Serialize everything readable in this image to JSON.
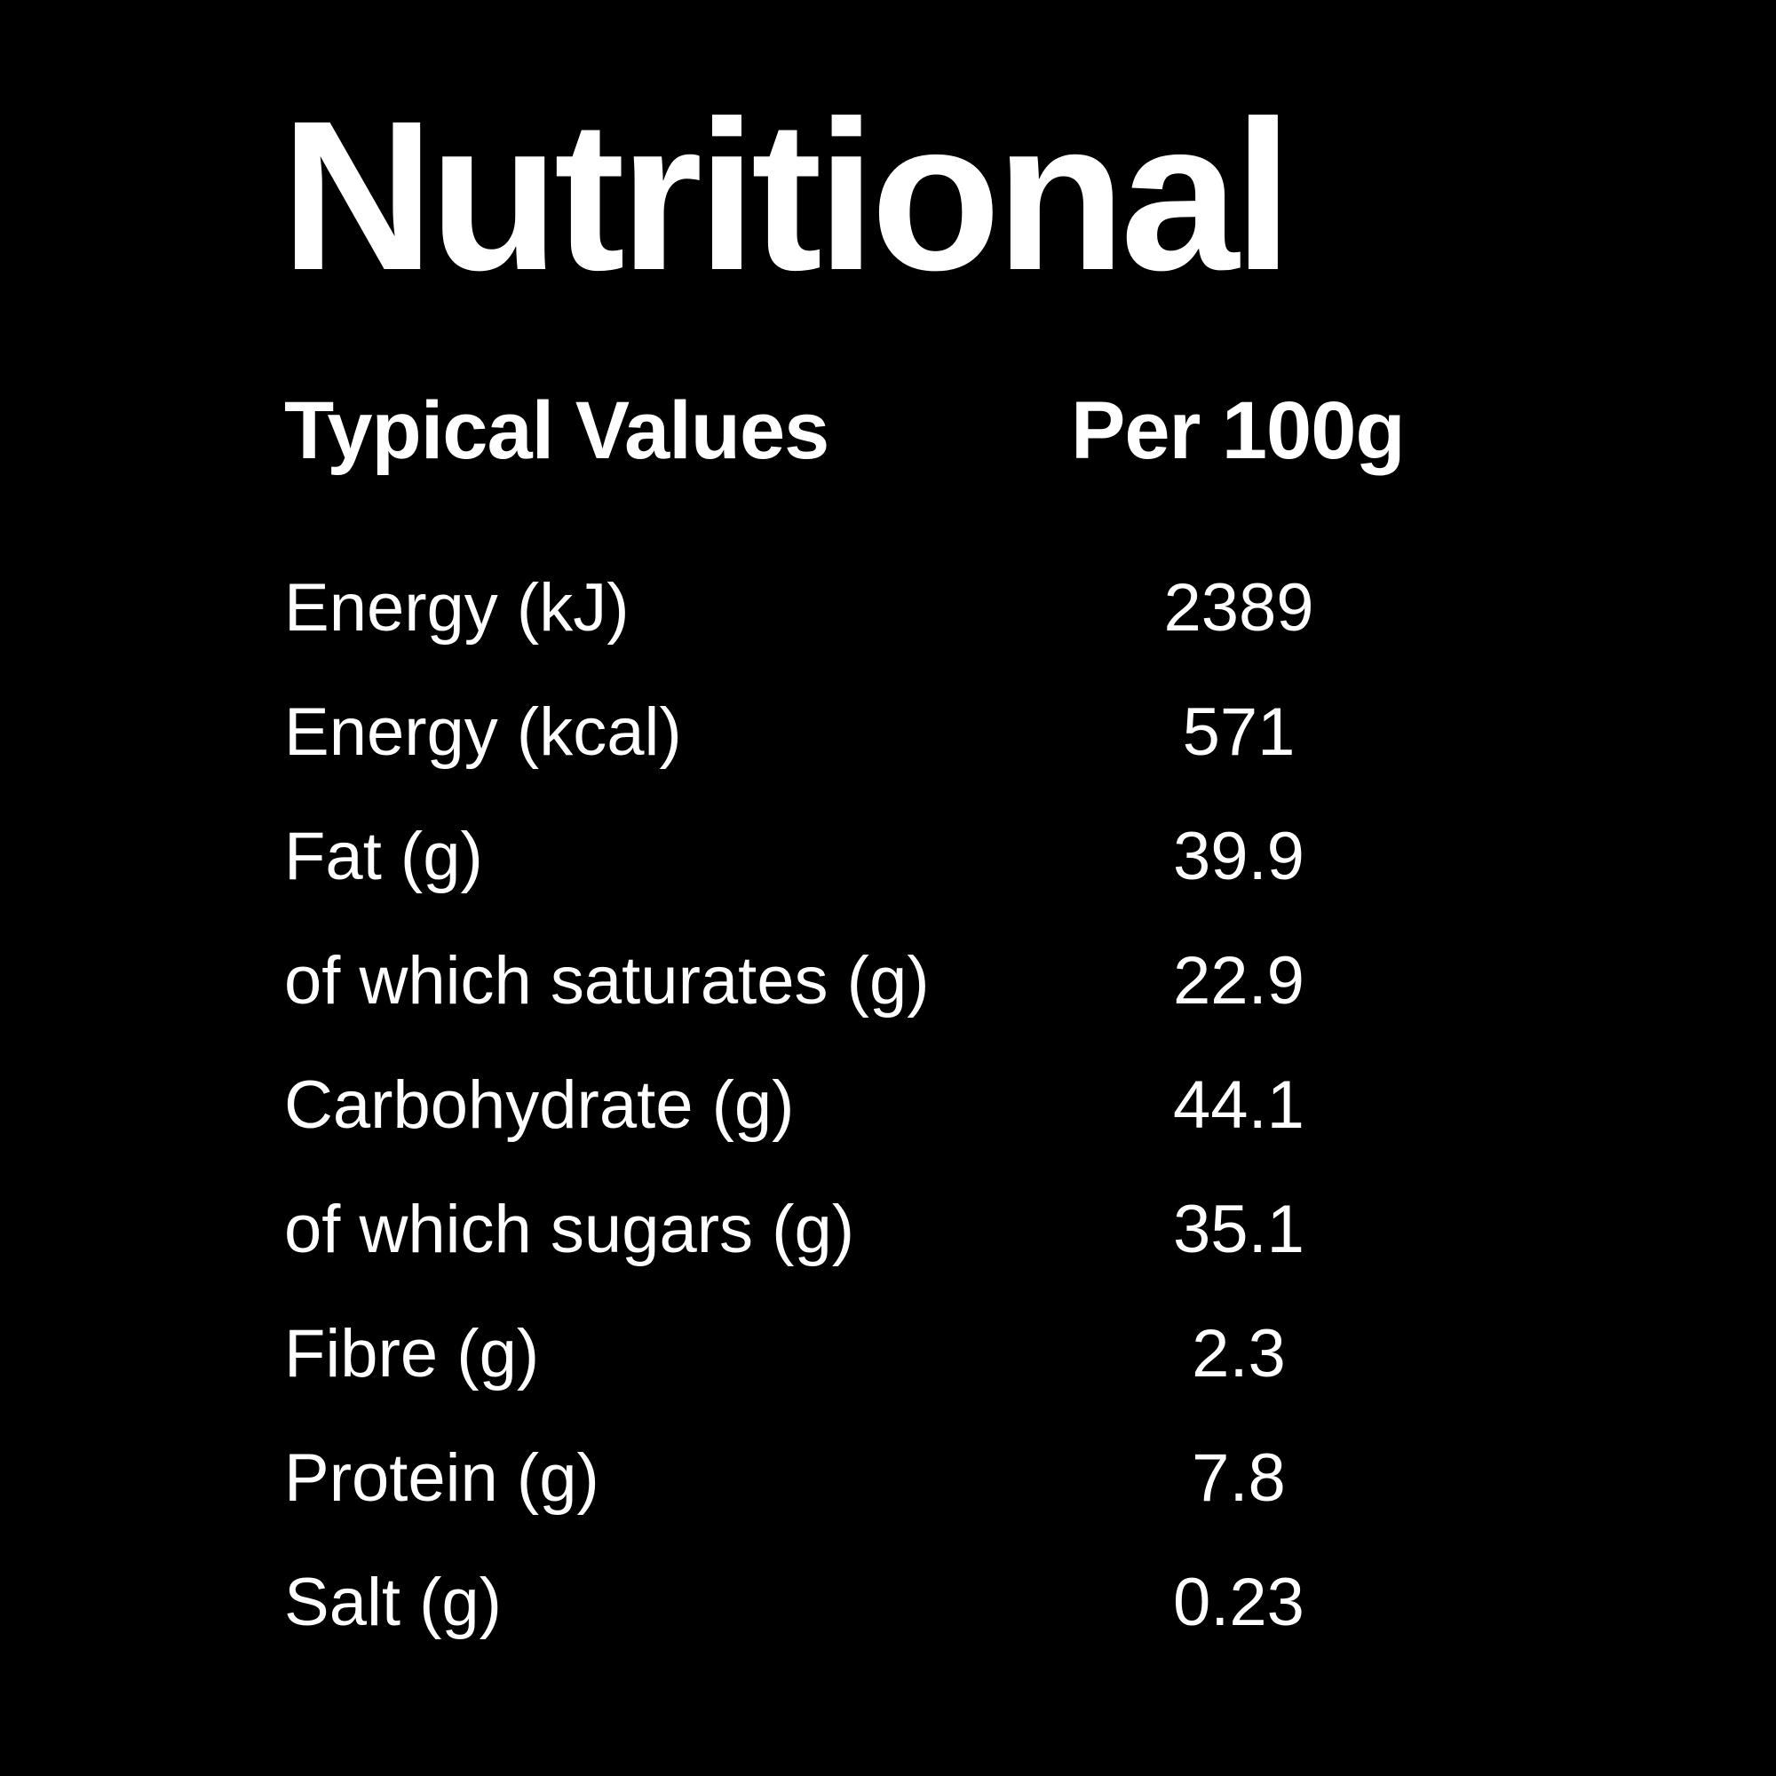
{
  "title": "Nutritional",
  "table": {
    "header": {
      "label": "Typical Values",
      "value": "Per 100g"
    },
    "rows": [
      {
        "label": "Energy (kJ)",
        "value": "2389"
      },
      {
        "label": "Energy (kcal)",
        "value": "571"
      },
      {
        "label": "Fat (g)",
        "value": "39.9"
      },
      {
        "label": "of which saturates (g)",
        "value": "22.9"
      },
      {
        "label": "Carbohydrate (g)",
        "value": "44.1"
      },
      {
        "label": "of which sugars (g)",
        "value": "35.1"
      },
      {
        "label": "Fibre (g)",
        "value": "2.3"
      },
      {
        "label": "Protein (g)",
        "value": "7.8"
      },
      {
        "label": "Salt (g)",
        "value": "0.23"
      }
    ]
  },
  "colors": {
    "background": "#000000",
    "text": "#ffffff"
  }
}
